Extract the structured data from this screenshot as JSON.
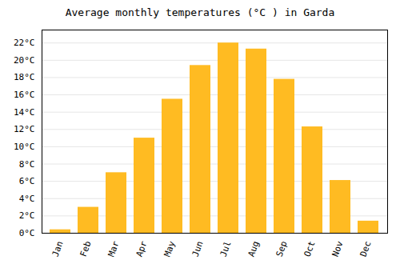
{
  "chart_data": {
    "type": "bar",
    "title": "Average monthly temperatures (°C ) in Garda",
    "categories": [
      "Jan",
      "Feb",
      "Mar",
      "Apr",
      "May",
      "Jun",
      "Jul",
      "Aug",
      "Sep",
      "Oct",
      "Nov",
      "Dec"
    ],
    "values": [
      0.4,
      3.0,
      7.0,
      11.0,
      15.5,
      19.4,
      22.0,
      21.3,
      17.8,
      12.3,
      6.1,
      1.4
    ],
    "color": "#FFBB22",
    "ylim": [
      0,
      23.5
    ],
    "yticks": [
      {
        "value": 0,
        "label": "0°C"
      },
      {
        "value": 2,
        "label": "2°C"
      },
      {
        "value": 4,
        "label": "4°C"
      },
      {
        "value": 6,
        "label": "6°C"
      },
      {
        "value": 8,
        "label": "8°C"
      },
      {
        "value": 10,
        "label": "10°C"
      },
      {
        "value": 12,
        "label": "12°C"
      },
      {
        "value": 14,
        "label": "14°C"
      },
      {
        "value": 16,
        "label": "16°C"
      },
      {
        "value": 18,
        "label": "18°C"
      },
      {
        "value": 20,
        "label": "20°C"
      },
      {
        "value": 22,
        "label": "22°C"
      }
    ],
    "grid": true
  }
}
